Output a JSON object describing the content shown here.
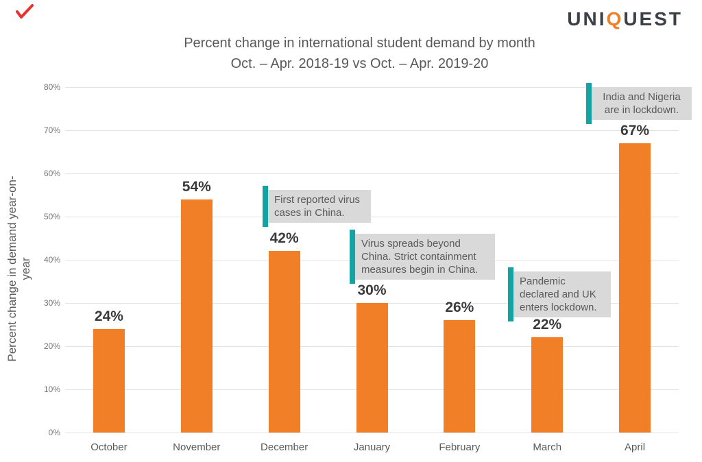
{
  "brand": {
    "logo_prefix": "UNI",
    "logo_q": "Q",
    "logo_suffix": "UEST"
  },
  "header": {
    "title": "Percent change in international student demand by month",
    "subtitle": "Oct. – Apr. 2018-19 vs Oct. – Apr. 2019-20"
  },
  "chart_data": {
    "type": "bar",
    "title": "Percent change in international student demand by month",
    "subtitle": "Oct. – Apr. 2018-19 vs Oct. – Apr. 2019-20",
    "categories": [
      "October",
      "November",
      "December",
      "January",
      "February",
      "March",
      "April"
    ],
    "values": [
      24,
      54,
      42,
      30,
      26,
      22,
      67
    ],
    "value_labels": [
      "24%",
      "54%",
      "42%",
      "30%",
      "26%",
      "22%",
      "67%"
    ],
    "xlabel": "",
    "ylabel": "Percent change in demand year-on-year",
    "ylim": [
      0,
      80
    ],
    "yticks": [
      "0%",
      "10%",
      "20%",
      "30%",
      "40%",
      "50%",
      "60%",
      "70%",
      "80%"
    ],
    "grid": true,
    "legend": "none",
    "annotations": [
      {
        "text": "First reported virus cases in China.",
        "near_category": "December"
      },
      {
        "text": "Virus spreads beyond China. Strict containment measures begin in China.",
        "near_category": "January"
      },
      {
        "text": "Pandemic declared and UK enters lockdown.",
        "near_category": "March"
      },
      {
        "text": "India and Nigeria are in lockdown.",
        "near_category": "April"
      }
    ]
  },
  "colors": {
    "bar": "#f07f27",
    "annotation_accent": "#14a3a3",
    "annotation_bg": "#d9d9d9",
    "text": "#595959",
    "gridline": "#e3e3e3",
    "logo_dark": "#3c4147",
    "logo_orange": "#f07f27",
    "corner_mark": "#e8312a"
  }
}
